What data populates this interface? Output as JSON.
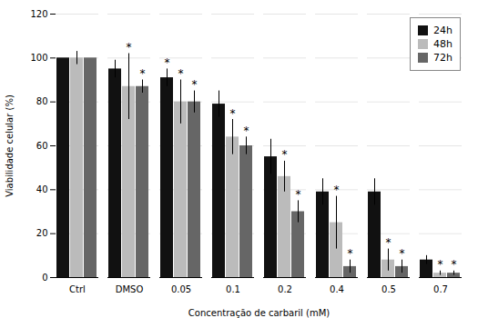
{
  "chart_data": {
    "type": "bar",
    "xlabel": "Concentração de carbaril (mM)",
    "ylabel": "Viabilidade celular (%)",
    "categories": [
      "Ctrl",
      "DMSO",
      "0.05",
      "0.1",
      "0.2",
      "0.4",
      "0.5",
      "0.7"
    ],
    "series": [
      {
        "name": "24h",
        "color": "#111111",
        "values": [
          100,
          95,
          91,
          79,
          55,
          39,
          39,
          8
        ],
        "errors": [
          0,
          4,
          4,
          6,
          8,
          6,
          6,
          2
        ],
        "annotations": [
          {
            "category": "0.05",
            "text": "*"
          }
        ]
      },
      {
        "name": "48h",
        "color": "#bbbbbb",
        "values": [
          100,
          87,
          80,
          64,
          46,
          25,
          8,
          2
        ],
        "errors": [
          3,
          15,
          10,
          8,
          7,
          12,
          5,
          1
        ],
        "annotations": [
          {
            "category": "DMSO",
            "text": "*"
          },
          {
            "category": "0.05",
            "text": "*"
          },
          {
            "category": "0.1",
            "text": "*"
          },
          {
            "category": "0.2",
            "text": "*"
          },
          {
            "category": "0.4",
            "text": "*"
          },
          {
            "category": "0.5",
            "text": "*"
          },
          {
            "category": "0.7",
            "text": "*"
          }
        ]
      },
      {
        "name": "72h",
        "color": "#666666",
        "values": [
          100,
          87,
          80,
          60,
          30,
          5,
          5,
          2
        ],
        "errors": [
          0,
          3,
          5,
          4,
          5,
          3,
          3,
          1
        ],
        "annotations": [
          {
            "category": "DMSO",
            "text": "*"
          },
          {
            "category": "0.05",
            "text": "*"
          },
          {
            "category": "0.1",
            "text": "*"
          },
          {
            "category": "0.2",
            "text": "*"
          },
          {
            "category": "0.4",
            "text": "*"
          },
          {
            "category": "0.5",
            "text": "*"
          },
          {
            "category": "0.7",
            "text": "*"
          }
        ]
      }
    ],
    "ylim": [
      0,
      120
    ],
    "yticks": [
      0,
      20,
      40,
      60,
      80,
      100,
      120
    ],
    "grid": true,
    "legend": "upper right"
  }
}
